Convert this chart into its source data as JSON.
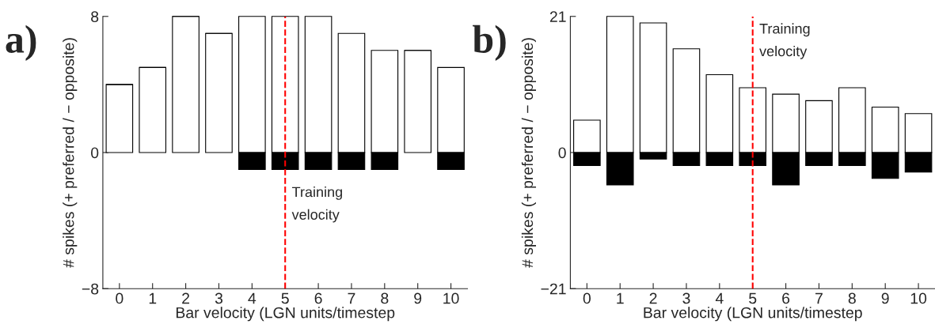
{
  "chart_data": [
    {
      "type": "bar",
      "categories": [
        "0",
        "1",
        "2",
        "3",
        "4",
        "5",
        "6",
        "7",
        "8",
        "9",
        "10"
      ],
      "xlabel": "Bar velocity (LGN units/timestep",
      "ylabel": "# spikes (+ preferred / − opposite)",
      "stacked": true,
      "ylim": [
        -8,
        8
      ],
      "yticks": [
        {
          "value": -8,
          "label": "−8"
        },
        0,
        8
      ],
      "grid": false,
      "legend": false,
      "series": [
        {
          "color": "#ffffff",
          "values": [
            4,
            5,
            8,
            7,
            8,
            8,
            8,
            7,
            6,
            6,
            5
          ]
        },
        {
          "color": "#000000",
          "values": [
            0,
            0,
            0,
            0,
            -1,
            -1,
            -1,
            -1,
            -1,
            0,
            -1
          ]
        }
      ],
      "ref_lines": [
        {
          "axis": "x",
          "value": "5",
          "label": "Training velocity",
          "color": "#ff0000",
          "line_style": "dashed"
        }
      ],
      "annotations": [
        "a)"
      ]
    },
    {
      "type": "bar",
      "categories": [
        "0",
        "1",
        "2",
        "3",
        "4",
        "5",
        "6",
        "7",
        "8",
        "9",
        "10"
      ],
      "xlabel": "Bar velocity (LGN units/timestep",
      "ylabel": "# spikes (+ preferred / − opposite)",
      "stacked": true,
      "ylim": [
        -21,
        21
      ],
      "yticks": [
        {
          "value": -21,
          "label": "−21"
        },
        0,
        21
      ],
      "grid": false,
      "legend": false,
      "series": [
        {
          "color": "#ffffff",
          "values": [
            5,
            21,
            20,
            16,
            12,
            10,
            9,
            8,
            10,
            7,
            6
          ]
        },
        {
          "color": "#000000",
          "values": [
            -2,
            -5,
            -1,
            -2,
            -2,
            -2,
            -5,
            -2,
            -2,
            -4,
            -3
          ]
        }
      ],
      "ref_lines": [
        {
          "axis": "x",
          "value": "5",
          "label": "Training velocity",
          "color": "#ff0000",
          "line_style": "dashed"
        }
      ],
      "annotations": [
        "b)"
      ]
    }
  ]
}
